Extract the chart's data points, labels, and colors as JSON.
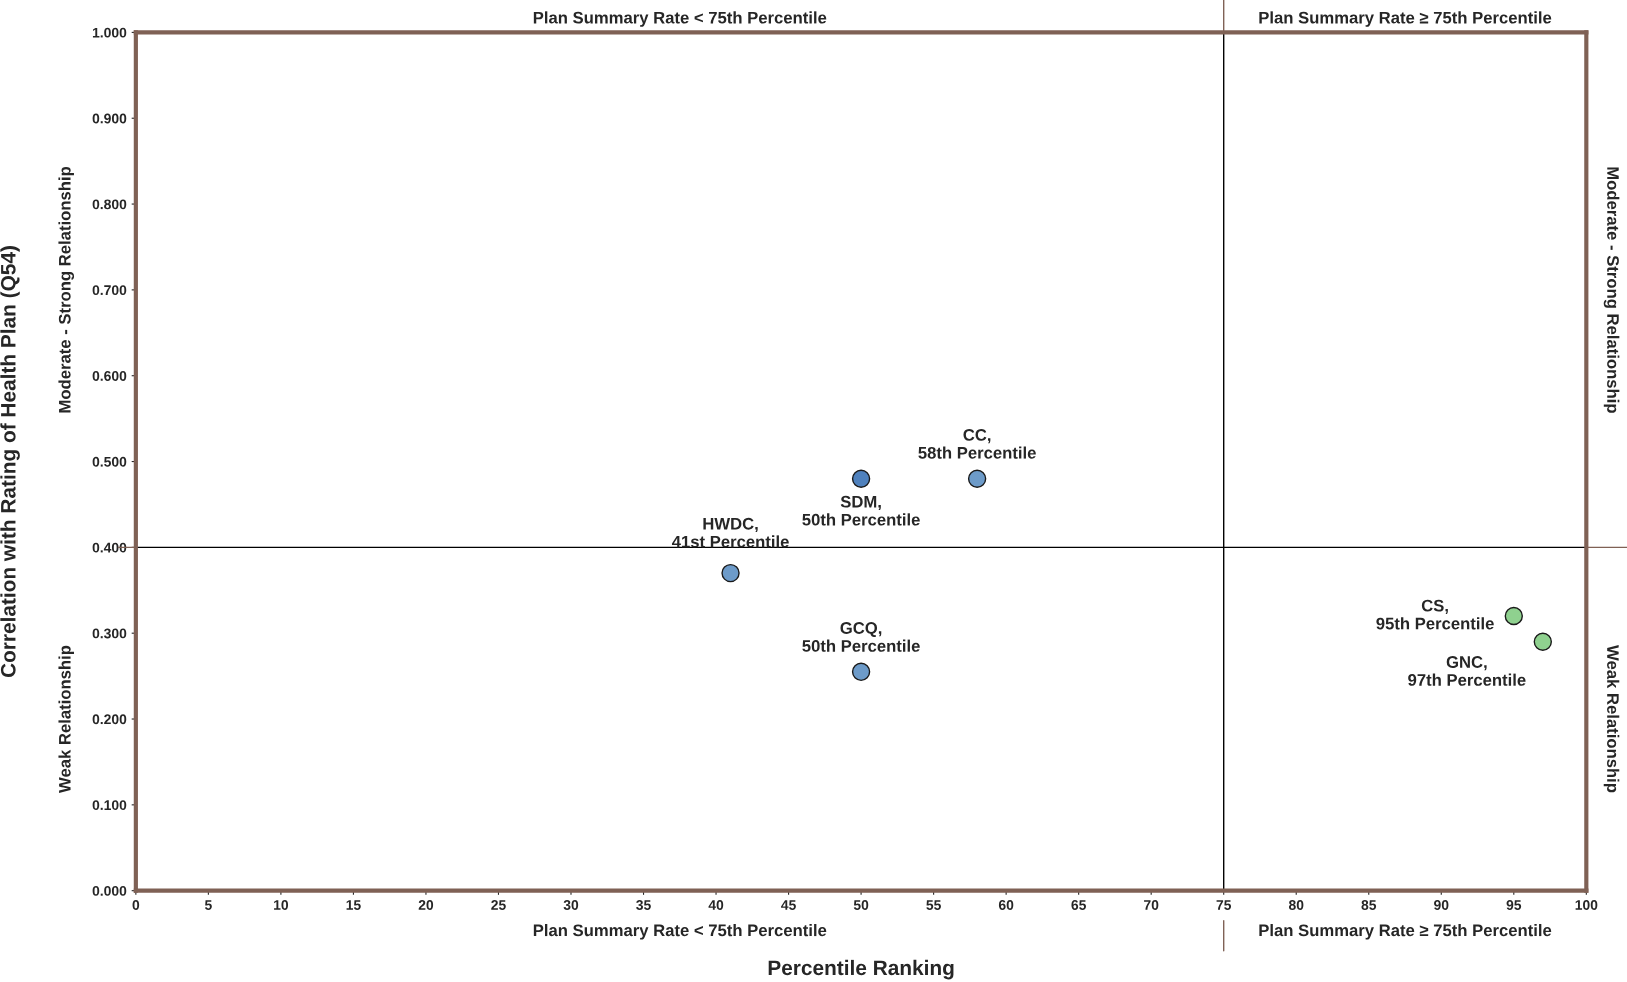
{
  "chart_data": {
    "type": "scatter",
    "xlabel": "Percentile Ranking",
    "ylabel": "Correlation with Rating of Health Plan (Q54)",
    "series": [
      {
        "name": "SDM,\n50th Percentile",
        "color": "#4f81bd",
        "x": [
          50
        ],
        "values": [
          0.48
        ]
      },
      {
        "name": "CC,\n58th Percentile",
        "color": "#6d9bc9",
        "x": [
          58
        ],
        "values": [
          0.48
        ]
      },
      {
        "name": "HWDC,\n41st Percentile",
        "color": "#6d9bc9",
        "x": [
          41
        ],
        "values": [
          0.37
        ]
      },
      {
        "name": "GCQ,\n50th Percentile",
        "color": "#6d9bc9",
        "x": [
          50
        ],
        "values": [
          0.255
        ]
      },
      {
        "name": "CS,\n95th Percentile",
        "color": "#8fd18f",
        "x": [
          95
        ],
        "values": [
          0.32
        ]
      },
      {
        "name": "GNC,\n97th Percentile",
        "color": "#8fd18f",
        "x": [
          97
        ],
        "values": [
          0.29
        ]
      }
    ],
    "marker": "circle",
    "xlim": [
      0,
      100
    ],
    "xticks": [
      0,
      5,
      10,
      15,
      20,
      25,
      30,
      35,
      40,
      45,
      50,
      55,
      60,
      65,
      70,
      75,
      80,
      85,
      90,
      95,
      100
    ],
    "ylim": [
      0,
      1
    ],
    "yticks": [
      {
        "value": 0,
        "label": "0.000"
      },
      {
        "value": 0.1,
        "label": "0.100"
      },
      {
        "value": 0.2,
        "label": "0.200"
      },
      {
        "value": 0.3,
        "label": "0.300"
      },
      {
        "value": 0.4,
        "label": "0.400"
      },
      {
        "value": 0.5,
        "label": "0.500"
      },
      {
        "value": 0.6,
        "label": "0.600"
      },
      {
        "value": 0.7,
        "label": "0.700"
      },
      {
        "value": 0.8,
        "label": "0.800"
      },
      {
        "value": 0.9,
        "label": "0.900"
      },
      {
        "value": 1,
        "label": "1.000"
      }
    ],
    "ref_lines": [
      {
        "axis": "x",
        "value": 75,
        "color": "#000000"
      },
      {
        "axis": "y",
        "value": 0.4,
        "color": "#000000"
      }
    ],
    "annotations": [
      "Plan Summary Rate < 75th Percentile",
      "Plan Summary Rate ≥ 75th Percentile",
      "Plan Summary Rate < 75th Percentile",
      "Plan Summary Rate ≥ 75th Percentile",
      "Moderate - Strong Relationship",
      "Weak Relationship",
      "Moderate - Strong Relationship",
      "Weak Relationship"
    ],
    "grid": false,
    "legend": false
  }
}
